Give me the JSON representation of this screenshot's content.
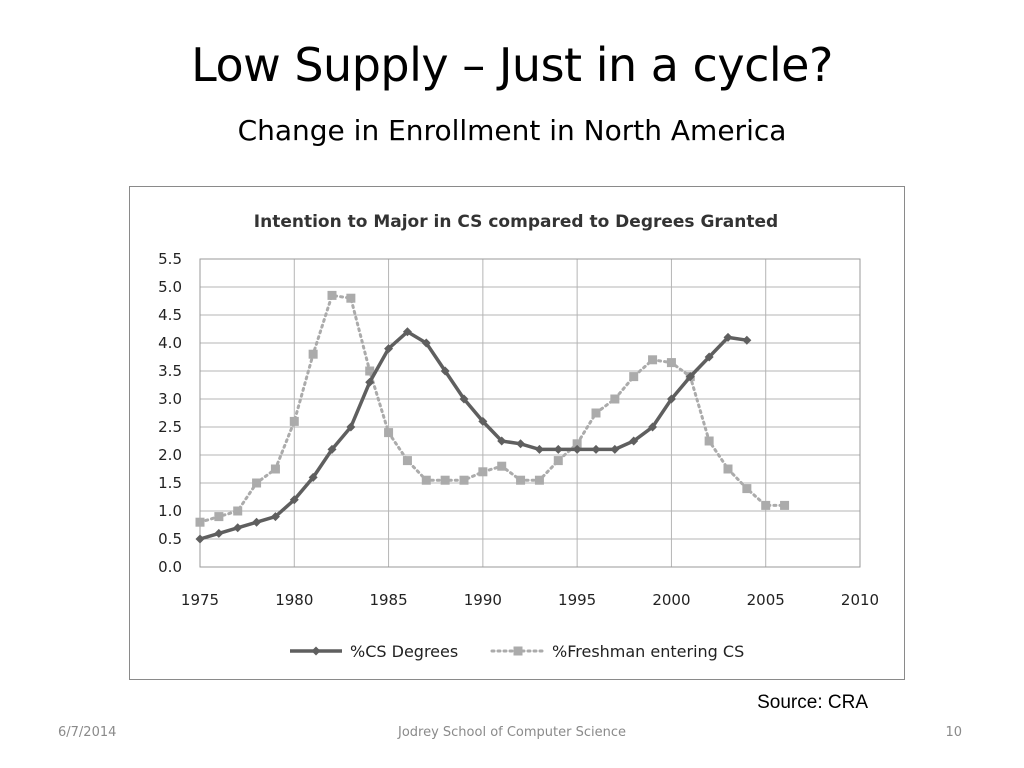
{
  "slide": {
    "title": "Low Supply – Just in a cycle?",
    "subtitle": "Change in Enrollment in North America",
    "source": "Source: CRA"
  },
  "footer": {
    "date": "6/7/2014",
    "center": "Jodrey School of Computer Science",
    "page": "10"
  },
  "chart_data": {
    "type": "line",
    "title": "Intention to Major in CS compared to Degrees Granted",
    "xlabel": "",
    "ylabel": "",
    "xlim": [
      1975,
      2010
    ],
    "ylim": [
      0.0,
      5.5
    ],
    "x_ticks": [
      "1975",
      "1980",
      "1985",
      "1990",
      "1995",
      "2000",
      "2005",
      "2010"
    ],
    "y_ticks": [
      "0.0",
      "0.5",
      "1.0",
      "1.5",
      "2.0",
      "2.5",
      "3.0",
      "3.5",
      "4.0",
      "4.5",
      "5.0",
      "5.5"
    ],
    "grid": true,
    "legend_position": "bottom",
    "series": [
      {
        "name": "%CS Degrees",
        "color": "#5f5f5f",
        "style": "solid",
        "marker": "diamond",
        "x": [
          1975,
          1976,
          1977,
          1978,
          1979,
          1980,
          1981,
          1982,
          1983,
          1984,
          1985,
          1986,
          1987,
          1988,
          1989,
          1990,
          1991,
          1992,
          1993,
          1994,
          1995,
          1996,
          1997,
          1998,
          1999,
          2000,
          2001,
          2002,
          2003,
          2004
        ],
        "values": [
          0.5,
          0.6,
          0.7,
          0.8,
          0.9,
          1.2,
          1.6,
          2.1,
          2.5,
          3.3,
          3.9,
          4.2,
          4.0,
          3.5,
          3.0,
          2.6,
          2.25,
          2.2,
          2.1,
          2.1,
          2.1,
          2.1,
          2.1,
          2.25,
          2.5,
          3.0,
          3.4,
          3.75,
          4.1,
          4.05
        ]
      },
      {
        "name": "%Freshman entering  CS",
        "color": "#ababab",
        "style": "dotted",
        "marker": "square",
        "x": [
          1975,
          1976,
          1977,
          1978,
          1979,
          1980,
          1981,
          1982,
          1983,
          1984,
          1985,
          1986,
          1987,
          1988,
          1989,
          1990,
          1991,
          1992,
          1993,
          1994,
          1995,
          1996,
          1997,
          1998,
          1999,
          2000,
          2001,
          2002,
          2003,
          2004,
          2005,
          2006
        ],
        "values": [
          0.8,
          0.9,
          1.0,
          1.5,
          1.75,
          2.6,
          3.8,
          4.85,
          4.8,
          3.5,
          2.4,
          1.9,
          1.55,
          1.55,
          1.55,
          1.7,
          1.8,
          1.55,
          1.55,
          1.9,
          2.2,
          2.75,
          3.0,
          3.4,
          3.7,
          3.65,
          3.4,
          2.25,
          1.75,
          1.4,
          1.1,
          1.1
        ]
      }
    ]
  }
}
